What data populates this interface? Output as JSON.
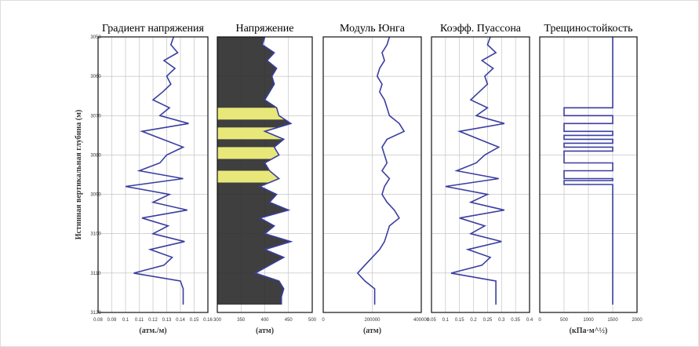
{
  "chart_data": [
    {
      "type": "line",
      "title": "Градиент напряжения",
      "xlabel": "(атм./м)",
      "ylabel": "Истинная вертикальная глубина (м)",
      "color": "#3a3ea0",
      "xlim": [
        0.08,
        0.16
      ],
      "xticks": [
        0.08,
        0.09,
        0.1,
        0.11,
        0.12,
        0.13,
        0.14,
        0.15,
        0.16
      ],
      "ylim": [
        3050,
        3120
      ],
      "yticks": [
        3050,
        3060,
        3070,
        3080,
        3090,
        3100,
        3110,
        3120
      ],
      "grid": true,
      "y": [
        3050,
        3052,
        3054,
        3056,
        3058,
        3060,
        3062,
        3064,
        3066,
        3068,
        3070,
        3072,
        3074,
        3076,
        3078,
        3080,
        3082,
        3084,
        3086,
        3088,
        3090,
        3092,
        3094,
        3096,
        3098,
        3100,
        3102,
        3104,
        3106,
        3108,
        3110,
        3112,
        3114,
        3116,
        3118
      ],
      "values": [
        0.135,
        0.133,
        0.138,
        0.128,
        0.136,
        0.13,
        0.133,
        0.127,
        0.12,
        0.132,
        0.125,
        0.146,
        0.112,
        0.127,
        0.142,
        0.13,
        0.125,
        0.11,
        0.142,
        0.1,
        0.132,
        0.12,
        0.145,
        0.112,
        0.131,
        0.12,
        0.143,
        0.118,
        0.134,
        0.128,
        0.106,
        0.14,
        0.142,
        0.142,
        0.142
      ]
    },
    {
      "type": "area",
      "title": "Напряжение",
      "xlabel": "(атм)",
      "color": "#3a3ea0",
      "fill": "#2a2a2a",
      "zone_color": "#e8e87a",
      "zones": [
        [
          3068,
          3071
        ],
        [
          3073,
          3076
        ],
        [
          3078,
          3081
        ],
        [
          3084,
          3087
        ]
      ],
      "xlim": [
        300,
        500
      ],
      "xticks": [
        300,
        350,
        400,
        450,
        500
      ],
      "ylim": [
        3050,
        3120
      ],
      "yticks": [
        3050,
        3060,
        3070,
        3080,
        3090,
        3100,
        3110,
        3120
      ],
      "grid": true,
      "y": [
        3050,
        3052,
        3054,
        3056,
        3058,
        3060,
        3062,
        3064,
        3066,
        3068,
        3070,
        3072,
        3074,
        3076,
        3078,
        3080,
        3082,
        3084,
        3086,
        3088,
        3090,
        3092,
        3094,
        3096,
        3098,
        3100,
        3102,
        3104,
        3106,
        3108,
        3110,
        3112,
        3114,
        3116,
        3118
      ],
      "values": [
        400,
        395,
        420,
        405,
        425,
        415,
        420,
        410,
        400,
        425,
        430,
        455,
        400,
        440,
        420,
        430,
        400,
        410,
        430,
        390,
        425,
        410,
        450,
        390,
        420,
        400,
        455,
        400,
        440,
        410,
        380,
        430,
        440,
        435,
        435
      ]
    },
    {
      "type": "line",
      "title": "Модуль Юнга",
      "xlabel": "(атм)",
      "color": "#3a3ea0",
      "xlim": [
        0,
        400000
      ],
      "xticks": [
        0,
        200000,
        400000
      ],
      "ylim": [
        3050,
        3120
      ],
      "yticks": [
        3050,
        3060,
        3070,
        3080,
        3090,
        3100,
        3110,
        3120
      ],
      "grid": true,
      "y": [
        3050,
        3052,
        3054,
        3056,
        3058,
        3060,
        3062,
        3064,
        3066,
        3068,
        3070,
        3072,
        3074,
        3076,
        3078,
        3080,
        3082,
        3084,
        3086,
        3088,
        3090,
        3092,
        3094,
        3096,
        3098,
        3100,
        3102,
        3104,
        3106,
        3108,
        3110,
        3112,
        3114,
        3116,
        3118
      ],
      "values": [
        270000,
        260000,
        240000,
        250000,
        230000,
        220000,
        240000,
        230000,
        250000,
        260000,
        270000,
        310000,
        330000,
        260000,
        240000,
        250000,
        260000,
        240000,
        270000,
        250000,
        240000,
        260000,
        290000,
        310000,
        270000,
        260000,
        250000,
        230000,
        200000,
        170000,
        140000,
        170000,
        210000,
        210000,
        210000
      ]
    },
    {
      "type": "line",
      "title": "Коэфф. Пуассона",
      "color": "#3a3ea0",
      "xlim": [
        0.05,
        0.4
      ],
      "xticks": [
        0.05,
        0.1,
        0.15,
        0.2,
        0.25,
        0.3,
        0.35,
        0.4
      ],
      "ylim": [
        3050,
        3120
      ],
      "yticks": [
        3050,
        3060,
        3070,
        3080,
        3090,
        3100,
        3110,
        3120
      ],
      "grid": true,
      "y": [
        3050,
        3052,
        3054,
        3056,
        3058,
        3060,
        3062,
        3064,
        3066,
        3068,
        3070,
        3072,
        3074,
        3076,
        3078,
        3080,
        3082,
        3084,
        3086,
        3088,
        3090,
        3092,
        3094,
        3096,
        3098,
        3100,
        3102,
        3104,
        3106,
        3108,
        3110,
        3112,
        3114,
        3116,
        3118
      ],
      "values": [
        0.26,
        0.25,
        0.28,
        0.23,
        0.27,
        0.24,
        0.25,
        0.22,
        0.19,
        0.25,
        0.21,
        0.31,
        0.15,
        0.22,
        0.29,
        0.24,
        0.21,
        0.14,
        0.29,
        0.1,
        0.25,
        0.19,
        0.31,
        0.15,
        0.24,
        0.19,
        0.3,
        0.18,
        0.26,
        0.23,
        0.12,
        0.28,
        0.28,
        0.28,
        0.28
      ]
    },
    {
      "type": "line",
      "title": "Трещиностойкость",
      "xlabel": "(кПа·м^½)",
      "color": "#3a3ea0",
      "xlim": [
        0,
        2000
      ],
      "xticks": [
        0,
        500,
        1000,
        1500,
        2000
      ],
      "ylim": [
        3050,
        3120
      ],
      "yticks": [
        3050,
        3060,
        3070,
        3080,
        3090,
        3100,
        3110,
        3120
      ],
      "grid": true,
      "y": [
        3050,
        3068,
        3068,
        3070,
        3070,
        3072,
        3072,
        3074,
        3074,
        3075,
        3075,
        3076,
        3076,
        3077,
        3077,
        3078,
        3078,
        3079,
        3079,
        3082,
        3082,
        3084,
        3084,
        3086,
        3086,
        3086.5,
        3086.5,
        3087.5,
        3087.5,
        3118
      ],
      "values": [
        1500,
        1500,
        500,
        500,
        1500,
        1500,
        500,
        500,
        1500,
        1500,
        500,
        500,
        1500,
        1500,
        500,
        500,
        1500,
        1500,
        500,
        500,
        1500,
        1500,
        500,
        500,
        1500,
        1500,
        500,
        500,
        1500,
        1500
      ]
    }
  ]
}
